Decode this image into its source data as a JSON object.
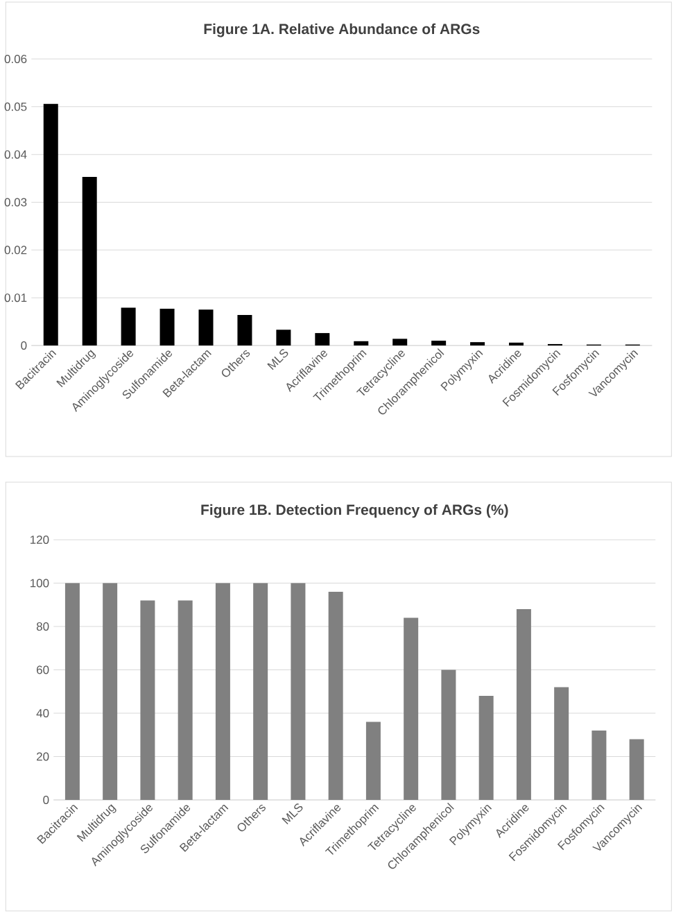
{
  "chart_data": [
    {
      "type": "bar",
      "title": "Figure 1A. Relative Abundance of ARGs",
      "categories": [
        "Bacitracin",
        "Multidrug",
        "Aminoglycoside",
        "Sulfonamide",
        "Beta-lactam",
        "Others",
        "MLS",
        "Acriflavine",
        "Trimethoprim",
        "Tetracycline",
        "Chloramphenicol",
        "Polymyxin",
        "Acridine",
        "Fosmidomycin",
        "Fosfomycin",
        "Vancomycin"
      ],
      "values": [
        0.0506,
        0.0353,
        0.0079,
        0.0077,
        0.0075,
        0.0064,
        0.0033,
        0.0026,
        0.0009,
        0.0014,
        0.001,
        0.0007,
        0.0006,
        0.0003,
        0.0002,
        0.0002
      ],
      "color": "#000000",
      "ylim": [
        0,
        0.06
      ],
      "yticks": [
        0,
        0.01,
        0.02,
        0.03,
        0.04,
        0.05,
        0.06
      ],
      "grid": "y"
    },
    {
      "type": "bar",
      "title": "Figure 1B. Detection Frequency of ARGs (%)",
      "categories": [
        "Bacitracin",
        "Multidrug",
        "Aminoglycoside",
        "Sulfonamide",
        "Beta-lactam",
        "Others",
        "MLS",
        "Acriflavine",
        "Trimethoprim",
        "Tetracycline",
        "Chloramphenicol",
        "Polymyxin",
        "Acridine",
        "Fosmidomycin",
        "Fosfomycin",
        "Vancomycin"
      ],
      "values": [
        100,
        100,
        92,
        92,
        100,
        100,
        100,
        96,
        36,
        84,
        60,
        48,
        88,
        52,
        32,
        28
      ],
      "color": "#808080",
      "ylim": [
        0,
        120
      ],
      "yticks": [
        0,
        20,
        40,
        60,
        80,
        100,
        120
      ],
      "grid": "y"
    }
  ]
}
